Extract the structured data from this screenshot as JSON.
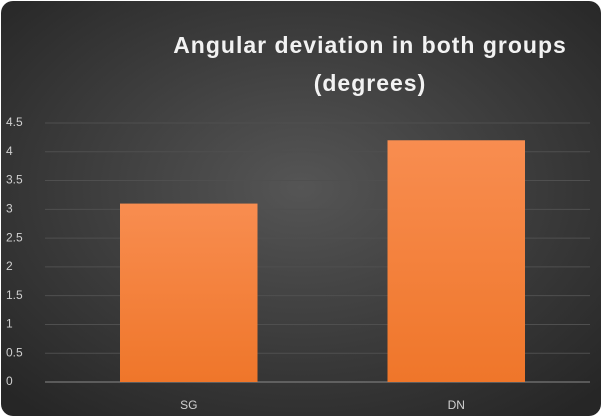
{
  "chart_data": {
    "type": "bar",
    "title": "Angular deviation in both groups (degrees)",
    "categories": [
      "SG",
      "DN"
    ],
    "values": [
      3.1,
      4.2
    ],
    "color": "#f4813d",
    "ylim": [
      0,
      4.5
    ],
    "yticks": [
      0,
      0.5,
      1,
      1.5,
      2,
      2.5,
      3,
      3.5,
      4,
      4.5
    ],
    "grid": true
  }
}
